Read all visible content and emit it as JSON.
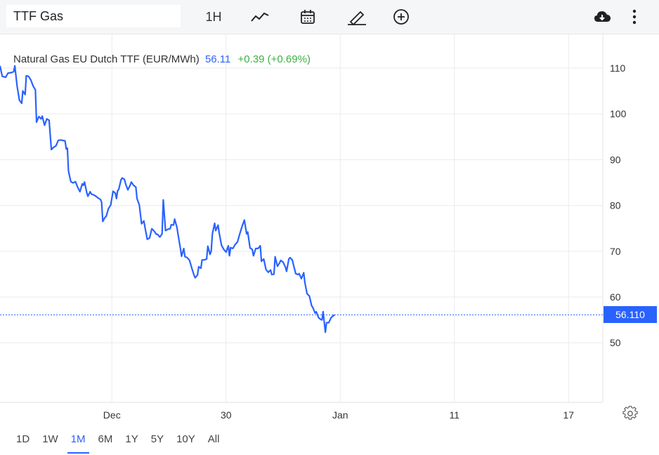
{
  "toolbar": {
    "symbol_value": "TTF Gas",
    "interval": "1H",
    "icons": [
      "line-chart-icon",
      "calendar-icon",
      "pencil-icon",
      "plus-circle-icon",
      "cloud-download-icon",
      "more-vertical-icon"
    ]
  },
  "chart_title": {
    "name": "Natural Gas EU Dutch TTF (EUR/MWh)",
    "last": "56.11",
    "change": "+0.39 (+0.69%)"
  },
  "price_tag": "56.110",
  "ranges": [
    "1D",
    "1W",
    "1M",
    "6M",
    "1Y",
    "5Y",
    "10Y",
    "All"
  ],
  "active_range": "1M",
  "colors": {
    "line": "#2962ff",
    "positive": "#3cb043",
    "grid": "#e9ebee",
    "toolbar_bg": "#f5f6f7"
  },
  "chart_data": {
    "type": "line",
    "title": "Natural Gas EU Dutch TTF (EUR/MWh)",
    "y_ticks": [
      50,
      60,
      70,
      80,
      90,
      100,
      110
    ],
    "ylim": [
      37,
      117.5
    ],
    "x_ticks": [
      {
        "label": "Dec",
        "x": 6
      },
      {
        "label": "30",
        "x": 16
      },
      {
        "label": "Jan",
        "x": 26
      },
      {
        "label": "11",
        "x": 36
      },
      {
        "label": "17",
        "x": 46
      }
    ],
    "xlim": [
      -3.8,
      49
    ],
    "last_value": 56.11,
    "series": [
      {
        "values": [
          [
            -3.8,
            110.5
          ],
          [
            -3.6,
            108.2
          ],
          [
            -3.3,
            108.0
          ],
          [
            -3.1,
            108.9
          ],
          [
            -2.8,
            109.0
          ],
          [
            -2.6,
            109.2
          ],
          [
            -2.5,
            110.5
          ],
          [
            -2.3,
            106.0
          ],
          [
            -2.1,
            103.0
          ],
          [
            -1.9,
            102.3
          ],
          [
            -1.8,
            105.0
          ],
          [
            -1.6,
            104.2
          ],
          [
            -1.5,
            108.3
          ],
          [
            -1.3,
            108.2
          ],
          [
            -1.1,
            107.4
          ],
          [
            -0.9,
            106.1
          ],
          [
            -0.7,
            105.2
          ],
          [
            -0.6,
            98.2
          ],
          [
            -0.4,
            99.4
          ],
          [
            -0.2,
            98.9
          ],
          [
            -0.1,
            99.5
          ],
          [
            0.1,
            97.5
          ],
          [
            0.3,
            98.9
          ],
          [
            0.5,
            98.6
          ],
          [
            0.7,
            92.2
          ],
          [
            0.9,
            92.7
          ],
          [
            1.1,
            93.0
          ],
          [
            1.3,
            94.2
          ],
          [
            1.5,
            94.3
          ],
          [
            1.7,
            94.2
          ],
          [
            1.9,
            94.1
          ],
          [
            2.0,
            92.3
          ],
          [
            2.1,
            92.5
          ],
          [
            2.2,
            87.5
          ],
          [
            2.4,
            85.2
          ],
          [
            2.6,
            84.9
          ],
          [
            2.8,
            85.2
          ],
          [
            3.0,
            84.0
          ],
          [
            3.2,
            83.0
          ],
          [
            3.4,
            84.7
          ],
          [
            3.5,
            84.4
          ],
          [
            3.6,
            85.1
          ],
          [
            3.8,
            82.8
          ],
          [
            3.9,
            82.0
          ],
          [
            4.1,
            83.0
          ],
          [
            4.2,
            82.5
          ],
          [
            4.4,
            82.3
          ],
          [
            4.6,
            82.0
          ],
          [
            4.8,
            81.6
          ],
          [
            5.0,
            81.3
          ],
          [
            5.1,
            80.7
          ],
          [
            5.2,
            76.5
          ],
          [
            5.4,
            77.4
          ],
          [
            5.5,
            77.6
          ],
          [
            5.7,
            79.3
          ],
          [
            5.9,
            80.1
          ],
          [
            6.1,
            83.1
          ],
          [
            6.3,
            82.7
          ],
          [
            6.4,
            81.5
          ],
          [
            6.5,
            83.2
          ],
          [
            6.6,
            83.5
          ],
          [
            6.8,
            85.6
          ],
          [
            6.9,
            86.0
          ],
          [
            7.1,
            85.7
          ],
          [
            7.2,
            84.7
          ],
          [
            7.4,
            83.4
          ],
          [
            7.6,
            84.4
          ],
          [
            7.7,
            85.1
          ],
          [
            7.9,
            84.4
          ],
          [
            8.1,
            84.0
          ],
          [
            8.2,
            81.5
          ],
          [
            8.4,
            80.1
          ],
          [
            8.6,
            76.0
          ],
          [
            8.8,
            76.6
          ],
          [
            8.9,
            75.2
          ],
          [
            9.1,
            72.6
          ],
          [
            9.3,
            72.9
          ],
          [
            9.5,
            74.9
          ],
          [
            9.7,
            74.4
          ],
          [
            9.9,
            73.7
          ],
          [
            10.0,
            73.7
          ],
          [
            10.2,
            73.1
          ],
          [
            10.4,
            73.8
          ],
          [
            10.5,
            81.2
          ],
          [
            10.7,
            74.5
          ],
          [
            10.9,
            74.8
          ],
          [
            11.1,
            74.9
          ],
          [
            11.2,
            75.8
          ],
          [
            11.4,
            75.7
          ],
          [
            11.5,
            77.0
          ],
          [
            11.7,
            75.2
          ],
          [
            11.8,
            73.6
          ],
          [
            12.0,
            70.6
          ],
          [
            12.1,
            68.9
          ],
          [
            12.3,
            70.6
          ],
          [
            12.4,
            68.8
          ],
          [
            12.6,
            68.6
          ],
          [
            12.8,
            68.0
          ],
          [
            13.0,
            66.3
          ],
          [
            13.2,
            64.7
          ],
          [
            13.3,
            64.2
          ],
          [
            13.5,
            64.8
          ],
          [
            13.6,
            66.6
          ],
          [
            13.8,
            66.3
          ],
          [
            13.9,
            68.1
          ],
          [
            14.1,
            68.1
          ],
          [
            14.3,
            68.3
          ],
          [
            14.4,
            71.1
          ],
          [
            14.6,
            69.3
          ],
          [
            14.7,
            70.0
          ],
          [
            14.8,
            73.8
          ],
          [
            15.0,
            76.1
          ],
          [
            15.1,
            74.5
          ],
          [
            15.3,
            75.7
          ],
          [
            15.4,
            74.0
          ],
          [
            15.6,
            71.3
          ],
          [
            15.8,
            70.4
          ],
          [
            16.0,
            69.8
          ],
          [
            16.2,
            71.2
          ],
          [
            16.3,
            69.0
          ],
          [
            16.4,
            70.8
          ],
          [
            16.6,
            70.6
          ],
          [
            16.8,
            71.5
          ],
          [
            17.0,
            72.0
          ],
          [
            17.2,
            73.8
          ],
          [
            17.4,
            75.4
          ],
          [
            17.6,
            76.8
          ],
          [
            17.8,
            73.8
          ],
          [
            17.9,
            74.2
          ],
          [
            18.1,
            70.7
          ],
          [
            18.3,
            70.4
          ],
          [
            18.4,
            69.0
          ],
          [
            18.6,
            70.6
          ],
          [
            18.8,
            70.6
          ],
          [
            19.0,
            71.2
          ],
          [
            19.1,
            67.8
          ],
          [
            19.3,
            68.3
          ],
          [
            19.5,
            66.0
          ],
          [
            19.7,
            65.4
          ],
          [
            19.9,
            65.9
          ],
          [
            20.0,
            64.9
          ],
          [
            20.2,
            65.0
          ],
          [
            20.3,
            68.8
          ],
          [
            20.5,
            66.7
          ],
          [
            20.7,
            67.5
          ],
          [
            20.8,
            68.0
          ],
          [
            21.0,
            67.6
          ],
          [
            21.2,
            66.5
          ],
          [
            21.3,
            65.6
          ],
          [
            21.5,
            68.3
          ],
          [
            21.6,
            68.6
          ],
          [
            21.8,
            68.1
          ],
          [
            21.9,
            67.1
          ],
          [
            22.1,
            65.1
          ],
          [
            22.3,
            64.9
          ],
          [
            22.4,
            65.1
          ],
          [
            22.6,
            64.0
          ],
          [
            22.8,
            65.3
          ],
          [
            22.9,
            63.2
          ],
          [
            23.1,
            60.7
          ],
          [
            23.3,
            60.2
          ],
          [
            23.5,
            58.1
          ],
          [
            23.6,
            57.7
          ],
          [
            23.8,
            56.5
          ],
          [
            23.9,
            56.8
          ],
          [
            24.1,
            55.5
          ],
          [
            24.3,
            55.1
          ],
          [
            24.4,
            55.0
          ],
          [
            24.5,
            56.8
          ],
          [
            24.7,
            52.3
          ],
          [
            24.8,
            54.4
          ],
          [
            25.0,
            54.4
          ],
          [
            25.2,
            55.5
          ],
          [
            25.5,
            56.1
          ]
        ]
      }
    ]
  }
}
